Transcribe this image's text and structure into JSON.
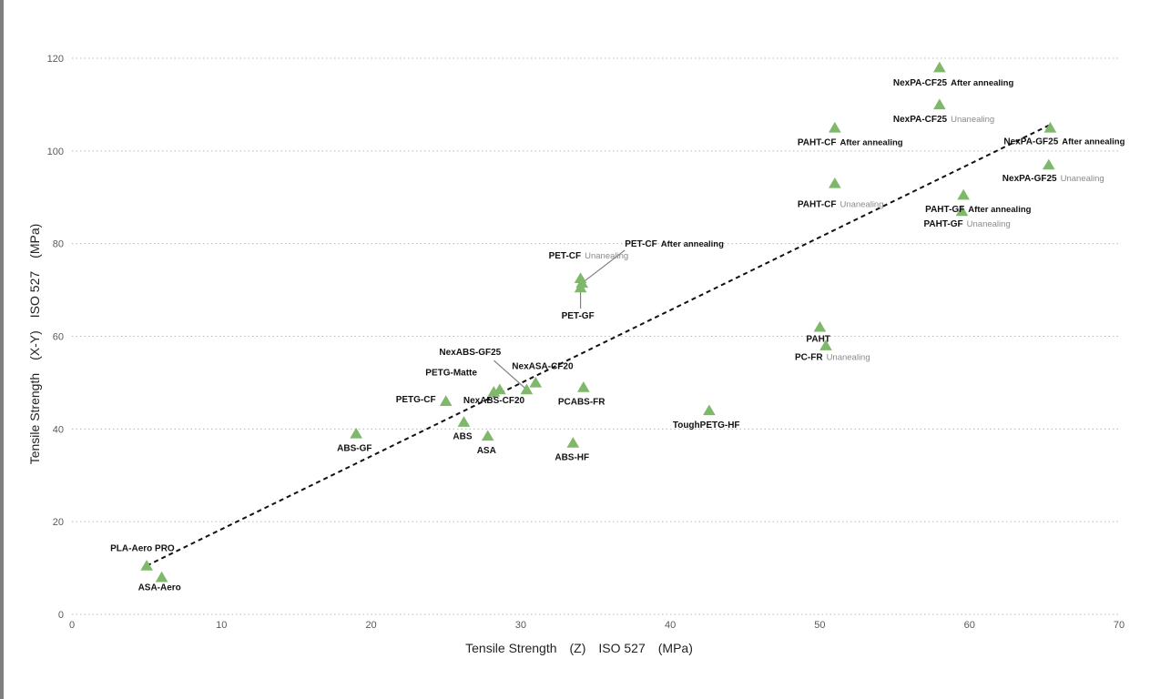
{
  "chart_data": {
    "type": "scatter",
    "title": "",
    "xlabel": "Tensile Strength　(Z)　ISO 527　(MPa)",
    "ylabel": "Tensile Strength　(X-Y)　ISO 527　(MPa)",
    "xlim": [
      0,
      70
    ],
    "ylim": [
      0,
      120
    ],
    "xticks": [
      "0",
      "10",
      "20",
      "30",
      "40",
      "50",
      "60",
      "70"
    ],
    "yticks": [
      "0",
      "20",
      "40",
      "60",
      "80",
      "100",
      "120"
    ],
    "grid": "horizontal dotted",
    "marker": "triangle",
    "marker_color": "#7fb86a",
    "trendline": {
      "style": "dashed",
      "color": "#111111",
      "from": [
        5,
        10.5
      ],
      "to": [
        65.3,
        105.5
      ]
    },
    "points": [
      {
        "name": "PLA-Aero PRO",
        "note": "",
        "x": 5,
        "y": 10.5
      },
      {
        "name": "ASA-Aero",
        "note": "",
        "x": 6,
        "y": 8
      },
      {
        "name": "ABS-GF",
        "note": "",
        "x": 19,
        "y": 39
      },
      {
        "name": "PETG-CF",
        "note": "",
        "x": 25,
        "y": 46
      },
      {
        "name": "ABS",
        "note": "",
        "x": 26.2,
        "y": 41.5
      },
      {
        "name": "ASA",
        "note": "",
        "x": 27.8,
        "y": 38.5
      },
      {
        "name": "PETG-Matte",
        "note": "",
        "x": 28.2,
        "y": 48
      },
      {
        "name": "NexABS-GF25",
        "note": "",
        "x": 30.4,
        "y": 48.5
      },
      {
        "name": "NexABS-CF20",
        "note": "",
        "x": 28.6,
        "y": 48.5
      },
      {
        "name": "NexASA-CF20",
        "note": "",
        "x": 31,
        "y": 50
      },
      {
        "name": "PCABS-FR",
        "note": "",
        "x": 34.2,
        "y": 49
      },
      {
        "name": "ABS-HF",
        "note": "",
        "x": 33.5,
        "y": 37
      },
      {
        "name": "PET-CF",
        "note": "Unanealing",
        "x": 34,
        "y": 72.5
      },
      {
        "name": "PET-CF",
        "note": "After annealing",
        "x": 34.1,
        "y": 71.5
      },
      {
        "name": "PET-GF",
        "note": "",
        "x": 34,
        "y": 70.5
      },
      {
        "name": "ToughPETG-HF",
        "note": "",
        "x": 42.6,
        "y": 44
      },
      {
        "name": "PAHT",
        "note": "",
        "x": 50,
        "y": 62
      },
      {
        "name": "PC-FR",
        "note": "Unanealing",
        "x": 50.4,
        "y": 58
      },
      {
        "name": "PAHT-CF",
        "note": "After annealing",
        "x": 51,
        "y": 105
      },
      {
        "name": "PAHT-CF",
        "note": "Unanealing",
        "x": 51,
        "y": 93
      },
      {
        "name": "NexPA-CF25",
        "note": "After annealing",
        "x": 58,
        "y": 118
      },
      {
        "name": "NexPA-CF25",
        "note": "Unanealing",
        "x": 58,
        "y": 110
      },
      {
        "name": "PAHT-GF",
        "note": "After annealing",
        "x": 59.6,
        "y": 90.5
      },
      {
        "name": "PAHT-GF",
        "note": "Unanealing",
        "x": 59.5,
        "y": 87
      },
      {
        "name": "NexPA-GF25",
        "note": "After annealing",
        "x": 65.4,
        "y": 105
      },
      {
        "name": "NexPA-GF25",
        "note": "Unanealing",
        "x": 65.3,
        "y": 97
      }
    ]
  }
}
